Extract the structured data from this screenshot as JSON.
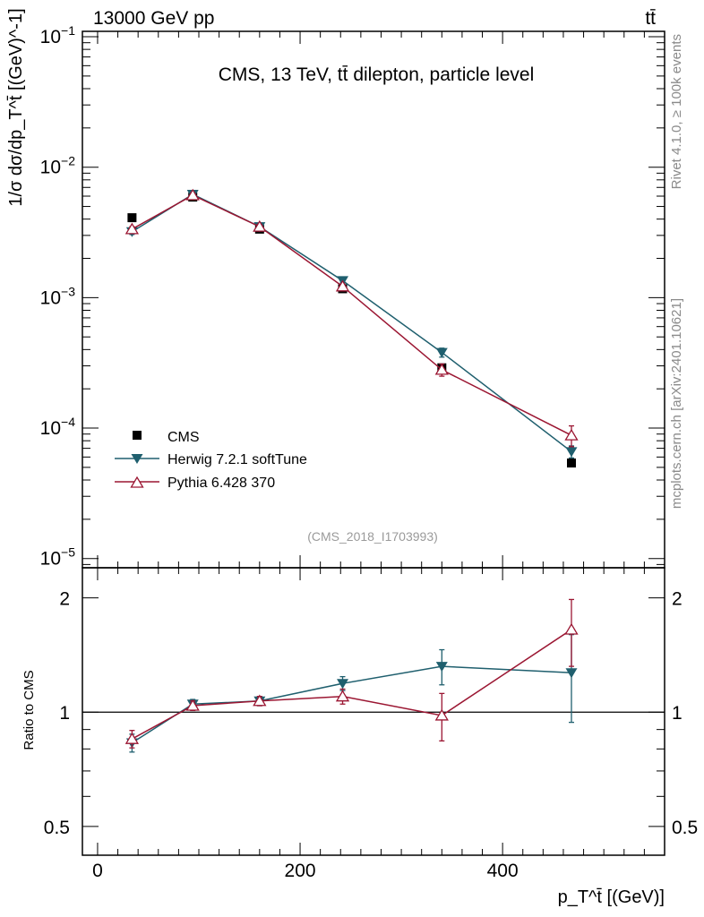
{
  "header": {
    "left": "13000 GeV pp",
    "right": "tt̄"
  },
  "side_labels": {
    "rivet": "Rivet 4.1.0, ≥ 100k events",
    "mcplots": "mcplots.cern.ch [arXiv:2401.10621]"
  },
  "chart_data": [
    {
      "type": "line",
      "title": "CMS, 13 TeV, tt̄ dilepton, particle level",
      "watermark": "(CMS_2018_I1703993)",
      "ylabel": "1/σ dσ/dp_T^t̄ [(GeV)^-1]",
      "yscale": "log",
      "ylim": [
        8.5e-06,
        0.11
      ],
      "xlim": [
        -15,
        560
      ],
      "ytick_labels": [
        {
          "v": 0.1,
          "mant": "10",
          "exp": "−1"
        },
        {
          "v": 0.01,
          "mant": "10",
          "exp": "−2"
        },
        {
          "v": 0.001,
          "mant": "10",
          "exp": "−3"
        },
        {
          "v": 0.0001,
          "mant": "10",
          "exp": "−4"
        },
        {
          "v": 1e-05,
          "mant": "10",
          "exp": "−5"
        }
      ],
      "legend": [
        "CMS",
        "Herwig 7.2.1 softTune",
        "Pythia 6.428 370"
      ],
      "series": [
        {
          "name": "CMS",
          "marker": "square",
          "color": "#000000",
          "x": [
            34,
            94,
            160,
            242,
            340,
            468
          ],
          "y": [
            0.0041,
            0.0059,
            0.00335,
            0.00117,
            0.00029,
            5.4e-05
          ]
        },
        {
          "name": "Herwig 7.2.1 softTune",
          "marker": "triangle-down",
          "color": "#1f5f6e",
          "x": [
            34,
            94,
            160,
            242,
            340,
            468
          ],
          "y": [
            0.0032,
            0.0062,
            0.0035,
            0.00135,
            0.00038,
            6.6e-05
          ],
          "err": [
            0.00015,
            0.0002,
            0.00013,
            5e-05,
            3e-05,
            7e-06
          ]
        },
        {
          "name": "Pythia 6.428 370",
          "marker": "triangle-up-open",
          "color": "#9b1632",
          "x": [
            34,
            94,
            160,
            242,
            340,
            468
          ],
          "y": [
            0.00335,
            0.0061,
            0.0035,
            0.00122,
            0.00028,
            8.8e-05
          ],
          "err": [
            0.00015,
            0.0002,
            0.00013,
            5e-05,
            3e-05,
            1.6e-05
          ]
        }
      ]
    },
    {
      "type": "line",
      "ylabel": "Ratio to CMS",
      "xlabel": "p_T^t̄ [(GeV)]",
      "yscale": "log",
      "ylim": [
        0.42,
        2.4
      ],
      "xlim": [
        -15,
        560
      ],
      "ytick_labels": [
        {
          "v": 0.5,
          "label": "0.5"
        },
        {
          "v": 1,
          "label": "1"
        },
        {
          "v": 2,
          "label": "2"
        }
      ],
      "xtick_labels": [
        {
          "v": 0,
          "label": "0"
        },
        {
          "v": 200,
          "label": "200"
        },
        {
          "v": 400,
          "label": "400"
        }
      ],
      "series": [
        {
          "name": "Herwig 7.2.1 softTune",
          "marker": "triangle-down",
          "color": "#1f5f6e",
          "x": [
            34,
            94,
            160,
            242,
            340,
            468
          ],
          "y": [
            0.83,
            1.05,
            1.07,
            1.19,
            1.32,
            1.27
          ],
          "err": [
            0.045,
            0.03,
            0.03,
            0.05,
            0.14,
            0.33
          ]
        },
        {
          "name": "Pythia 6.428 370",
          "marker": "triangle-up-open",
          "color": "#9b1632",
          "x": [
            34,
            94,
            160,
            242,
            340,
            468
          ],
          "y": [
            0.85,
            1.04,
            1.07,
            1.1,
            0.98,
            1.65
          ],
          "err": [
            0.045,
            0.03,
            0.03,
            0.05,
            0.14,
            0.33
          ]
        }
      ]
    }
  ]
}
